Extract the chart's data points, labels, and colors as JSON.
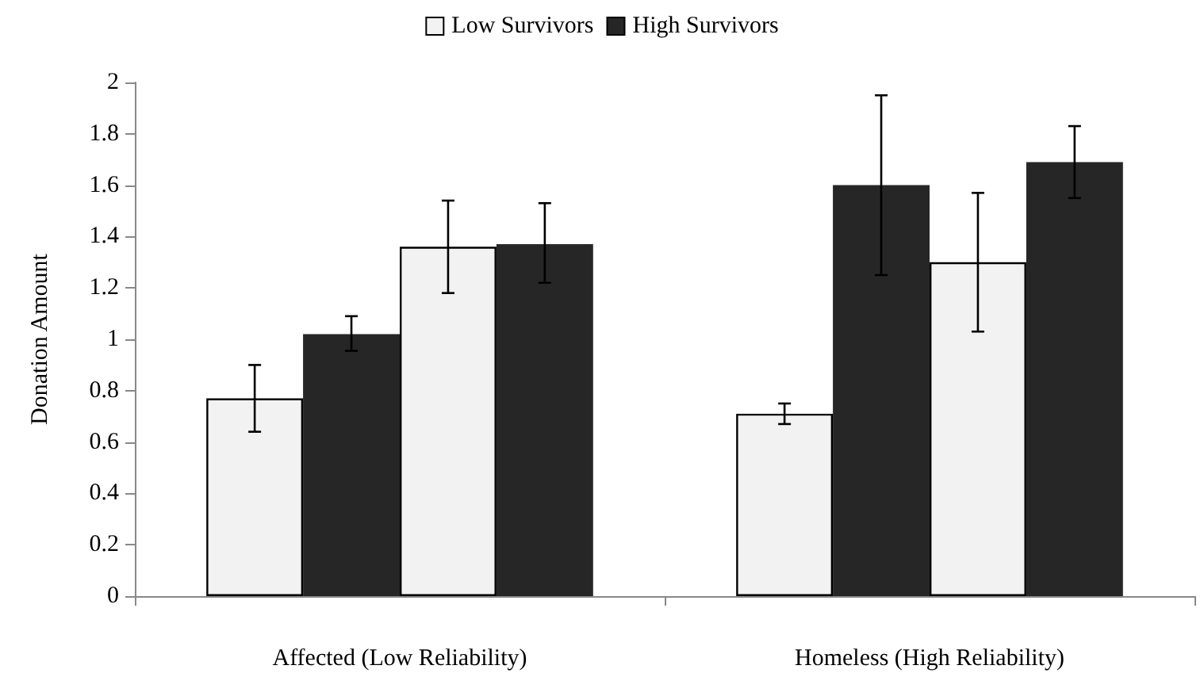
{
  "chart_data": {
    "type": "bar",
    "ylabel": "Donation Amount",
    "categories": [
      "Affected (Low Reliability)",
      "Homeless (High Reliability)"
    ],
    "series": [
      {
        "name": "Low Survivors",
        "color": "#f2f2f2",
        "values": [
          0.77,
          0.71
        ],
        "errors": [
          [
            0.64,
            0.9
          ],
          [
            0.67,
            0.75
          ]
        ]
      },
      {
        "name": "High Survivors",
        "color": "#262626",
        "values": [
          1.02,
          1.6
        ],
        "errors": [
          [
            0.955,
            1.09
          ],
          [
            1.25,
            1.95
          ]
        ]
      },
      {
        "color": "#f2f2f2",
        "values": [
          1.36,
          1.3
        ],
        "errors": [
          [
            1.18,
            1.54
          ],
          [
            1.03,
            1.57
          ]
        ]
      },
      {
        "color": "#262626",
        "values": [
          1.37,
          1.69
        ],
        "errors": [
          [
            1.22,
            1.53
          ],
          [
            1.55,
            1.83
          ]
        ]
      }
    ],
    "ylim": [
      0,
      2
    ],
    "yticks": [
      0,
      0.2,
      0.4,
      0.6,
      0.8,
      1,
      1.2,
      1.4,
      1.6,
      1.8,
      2
    ],
    "grid": false,
    "legend": "top"
  }
}
